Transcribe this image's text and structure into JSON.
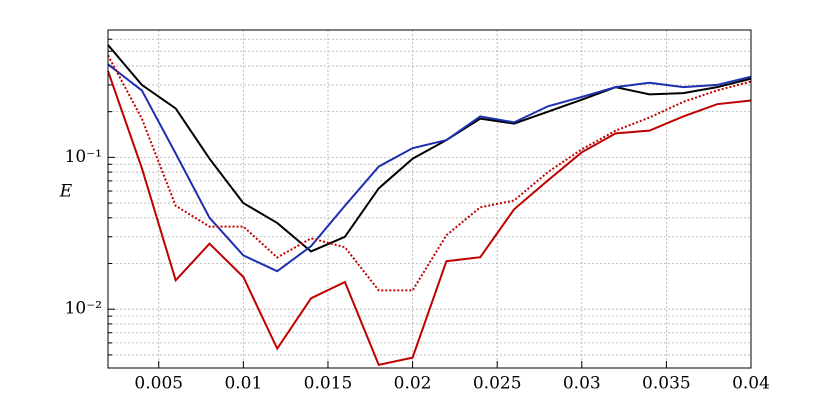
{
  "chart_data": {
    "type": "line",
    "ylabel": "E",
    "log_y": true,
    "grid": true,
    "x": [
      0.002,
      0.004,
      0.006,
      0.008,
      0.01,
      0.012,
      0.014,
      0.016,
      0.018,
      0.02,
      0.022,
      0.024,
      0.026,
      0.028,
      0.03,
      0.032,
      0.034,
      0.036,
      0.038,
      0.04
    ],
    "xlim": [
      0.002,
      0.04
    ],
    "xticks": [
      0.005,
      0.01,
      0.015,
      0.02,
      0.025,
      0.03,
      0.035,
      0.04
    ],
    "ylim": [
      0.0041,
      0.69
    ],
    "yticks": [
      {
        "value": 0.01,
        "label": "10⁻²"
      },
      {
        "value": 0.1,
        "label": "10⁻¹"
      }
    ],
    "yminor": [
      0.005,
      0.006,
      0.007,
      0.008,
      0.009,
      0.02,
      0.03,
      0.04,
      0.05,
      0.06,
      0.07,
      0.08,
      0.09,
      0.2,
      0.3,
      0.4,
      0.5,
      0.6
    ],
    "series": [
      {
        "color": "#000000",
        "style": "solid",
        "values": [
          0.55,
          0.3,
          0.21,
          0.098,
          0.05,
          0.037,
          0.024,
          0.03,
          0.0625,
          0.098,
          0.13,
          0.18,
          0.167,
          0.2,
          0.24,
          0.29,
          0.26,
          0.265,
          0.29,
          0.33
        ]
      },
      {
        "color": "#1c2fb0",
        "style": "solid",
        "values": [
          0.41,
          0.276,
          0.106,
          0.04,
          0.0226,
          0.0178,
          0.026,
          0.048,
          0.087,
          0.115,
          0.13,
          0.186,
          0.17,
          0.217,
          0.25,
          0.29,
          0.31,
          0.29,
          0.3,
          0.34
        ]
      },
      {
        "color": "#c00000",
        "style": "solid",
        "values": [
          0.37,
          0.085,
          0.0155,
          0.027,
          0.0163,
          0.0055,
          0.0118,
          0.0151,
          0.0043,
          0.0048,
          0.0207,
          0.022,
          0.0455,
          0.0706,
          0.108,
          0.144,
          0.15,
          0.186,
          0.224,
          0.237
        ]
      },
      {
        "color": "#c00000",
        "style": "dotted",
        "values": [
          0.47,
          0.18,
          0.048,
          0.035,
          0.035,
          0.0219,
          0.0293,
          0.0256,
          0.0133,
          0.0133,
          0.0307,
          0.0469,
          0.052,
          0.08,
          0.113,
          0.15,
          0.183,
          0.232,
          0.276,
          0.316
        ]
      }
    ]
  }
}
